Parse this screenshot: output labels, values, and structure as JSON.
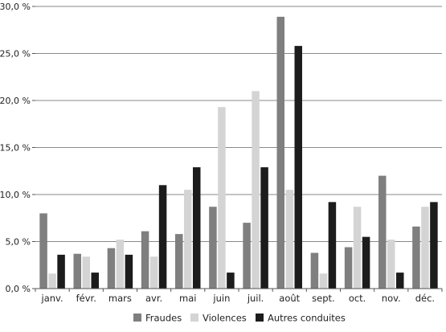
{
  "chart_data": {
    "type": "bar",
    "categories": [
      "janv.",
      "févr.",
      "mars",
      "avr.",
      "mai",
      "juin",
      "juil.",
      "août",
      "sept.",
      "oct.",
      "nov.",
      "déc."
    ],
    "series": [
      {
        "name": "Fraudes",
        "color": "#7f7f7f",
        "values": [
          8.0,
          3.7,
          4.3,
          6.1,
          5.8,
          8.7,
          7.0,
          28.9,
          3.8,
          4.4,
          12.0,
          6.6
        ]
      },
      {
        "name": "Violences",
        "color": "#d4d4d4",
        "values": [
          1.6,
          3.4,
          5.2,
          3.4,
          10.5,
          19.3,
          21.0,
          10.5,
          1.6,
          8.7,
          5.2,
          8.7
        ]
      },
      {
        "name": "Autres conduites",
        "color": "#1c1c1c",
        "values": [
          3.6,
          1.7,
          3.6,
          11.0,
          12.9,
          1.7,
          12.9,
          25.8,
          9.2,
          5.5,
          1.7,
          9.2
        ]
      }
    ],
    "y_ticks": [
      "0,0 %",
      "5,0 %",
      "10,0 %",
      "15,0 %",
      "20,0 %",
      "25,0 %",
      "30,0 %"
    ],
    "ylim": [
      0,
      30
    ],
    "grid": true,
    "legend_position": "bottom"
  }
}
